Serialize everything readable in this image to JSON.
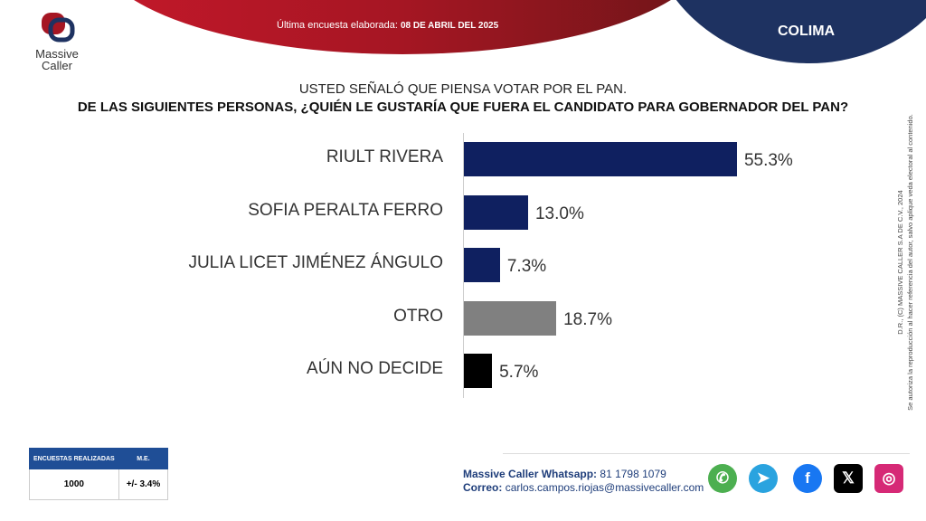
{
  "header": {
    "survey_label": "Última encuesta elaborada:",
    "survey_date": "08 DE ABRIL DEL 2025",
    "region": "COLIMA"
  },
  "logo": {
    "line1": "Massive",
    "line2": "Caller"
  },
  "question": {
    "line1": "USTED SEÑALÓ QUE PIENSA VOTAR POR EL PAN.",
    "line2": "DE LAS SIGUIENTES PERSONAS,  ¿QUIÉN LE GUSTARÍA QUE FUERA EL CANDIDATO PARA GOBERNADOR DEL PAN?"
  },
  "chart_data": {
    "type": "bar",
    "orientation": "horizontal",
    "categories": [
      "RIULT RIVERA",
      "SOFIA PERALTA FERRO",
      "JULIA LICET JIMÉNEZ ÁNGULO",
      "OTRO",
      "AÚN NO DECIDE"
    ],
    "values": [
      55.3,
      13.0,
      7.3,
      18.7,
      5.7
    ],
    "labels": [
      "55.3%",
      "13.0%",
      "7.3%",
      "18.7%",
      "5.7%"
    ],
    "colors": [
      "#0f2060",
      "#0f2060",
      "#0f2060",
      "#808080",
      "#000000"
    ],
    "xlim": [
      0,
      100
    ],
    "grid": false
  },
  "legal": {
    "line1": "D.R., (C) MASSIVE CALLER S.A DE C.V., 2024",
    "line2": "Se autoriza la reproducción al hacer referencia del autor, salvo aplique veda electoral al contenido."
  },
  "stats": {
    "h1": "ENCUESTAS REALIZADAS",
    "h2": "M.E.",
    "v1": "1000",
    "v2": "+/- 3.4%"
  },
  "contact": {
    "wa_label": "Massive Caller Whatsapp:",
    "wa": "81 1798 1079",
    "mail_label": "Correo:",
    "mail": "carlos.campos.riojas@massivecaller.com"
  },
  "social": [
    {
      "icon": "whatsapp-icon",
      "color": "#4caf50",
      "glyph": "✆"
    },
    {
      "icon": "telegram-icon",
      "color": "#2aa3df",
      "glyph": "➤"
    },
    {
      "icon": "facebook-icon",
      "color": "#1877f2",
      "glyph": "f"
    },
    {
      "icon": "x-icon",
      "color": "#000000",
      "glyph": "𝕏"
    },
    {
      "icon": "instagram-icon",
      "color": "#d62976",
      "glyph": "◎"
    }
  ]
}
